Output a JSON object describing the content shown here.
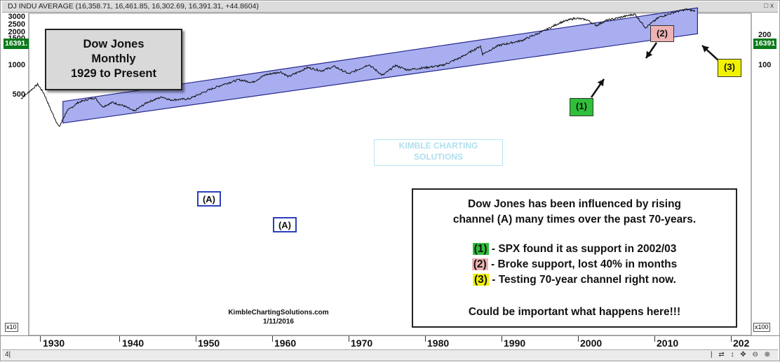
{
  "header": {
    "title": "DJ INDU AVERAGE (16,358.71, 16,461.85, 16,302.69, 16,391.31, +44.8604)",
    "controls": "□ x"
  },
  "left_scale": [
    "3000",
    "2500",
    "2000",
    "1500",
    "1000",
    "500"
  ],
  "right_scale": [
    "200",
    "100"
  ],
  "price_badge_left": "16391.",
  "price_badge_right": "16391",
  "scale_left_bottom": "x10",
  "scale_right_bottom": "x100",
  "scroll_left": "4|",
  "scroll_tools": "| ⇄ ↕ ✥ ⊖ ⊕",
  "title_box": {
    "line1": "Dow Jones",
    "line2": "Monthly",
    "line3": "1929 to Present"
  },
  "info_box": {
    "headline1": "Dow Jones has been influenced by rising",
    "headline2": "channel (A) many times over the past 70-years.",
    "item1_tag": "(1)",
    "item1_text": " - SPX found it as support in 2002/03",
    "item2_tag": "(2)",
    "item2_text": " - Broke support, lost 40% in months",
    "item3_tag": "(3)",
    "item3_text": " - Testing 70-year channel right now.",
    "footer": "Could be important what happens here!!!"
  },
  "labels": {
    "a_upper": "(A)",
    "a_lower": "(A)",
    "n1": "(1)",
    "n2": "(2)",
    "n3": "(3)"
  },
  "credit": {
    "line1": "KimbleChartingSolutions.com",
    "line2": "1/11/2016"
  },
  "watermark": {
    "line1": "KIMBLE CHARTING",
    "line2": "SOLUTIONS"
  },
  "colors": {
    "channel": "#a8aef0",
    "channel_edge": "#27288c",
    "green": "#2fbf3a",
    "pink": "#efb3b3",
    "yellow": "#f2f200"
  },
  "chart_data": {
    "type": "line",
    "title": "DJ INDU AVERAGE",
    "y_scale": "log",
    "series": [
      {
        "name": "DJ INDU AVERAGE",
        "x": [
          1927.5,
          1929.7,
          1930.5,
          1931.5,
          1932.5,
          1933.5,
          1935,
          1936.5,
          1937.2,
          1938.2,
          1939.5,
          1941,
          1942.3,
          1944,
          1946,
          1947,
          1949.5,
          1952,
          1954,
          1956,
          1957.8,
          1959.5,
          1961.5,
          1962.5,
          1965,
          1966.8,
          1968.5,
          1970.4,
          1973,
          1974.8,
          1976.5,
          1978,
          1980.5,
          1982.6,
          1985,
          1987.6,
          1987.9,
          1990,
          1993,
          1996,
          1998,
          2000,
          2001.5,
          2002.8,
          2004,
          2007.8,
          2009.2,
          2011,
          2013,
          2014.5,
          2015.7
        ],
        "values": [
          180,
          380,
          240,
          95,
          42,
          95,
          150,
          180,
          190,
          120,
          150,
          125,
          95,
          150,
          200,
          170,
          180,
          280,
          380,
          480,
          420,
          620,
          720,
          560,
          900,
          760,
          950,
          650,
          1050,
          600,
          1000,
          800,
          900,
          1000,
          1500,
          2700,
          1800,
          2800,
          3600,
          6000,
          9000,
          11400,
          10500,
          7800,
          10000,
          14000,
          7000,
          12000,
          15500,
          17800,
          16391
        ]
      }
    ],
    "x_ticks": [
      "1930",
      "1940",
      "1950",
      "1960",
      "1970",
      "1980",
      "1990",
      "2000",
      "2010",
      "202"
    ],
    "y_ticks": [
      500,
      1000,
      1500,
      2000,
      2500,
      3000
    ],
    "channel": {
      "lower_start": [
        1933,
        52
      ],
      "lower_end": [
        2016,
        5100
      ],
      "upper_start": [
        1933,
        157
      ],
      "upper_end": [
        2016,
        19300
      ]
    }
  }
}
